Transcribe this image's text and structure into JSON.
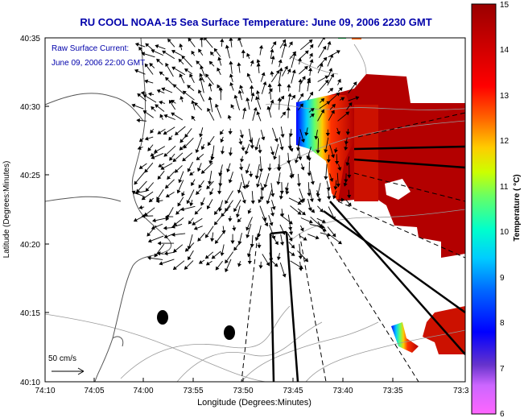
{
  "title": "RU COOL  NOAA-15  Sea Surface Temperature:  June 09, 2006 2230 GMT",
  "overlay": {
    "line1": "Raw Surface Current:",
    "line2": "June 09, 2006 22:00 GMT"
  },
  "scale_label": "50 cm/s",
  "xlabel": "Longitude (Degrees:Minutes)",
  "ylabel": "Latitude (Degrees:Minutes)",
  "x_ticks": [
    "74:10",
    "74:05",
    "74:00",
    "73:55",
    "73:50",
    "73:45",
    "73:40",
    "73:35",
    "73:3"
  ],
  "y_ticks": [
    "40:35",
    "40:30",
    "40:25",
    "40:20",
    "40:15",
    "40:10"
  ],
  "colorbar": {
    "label": "Temperature ( °C)",
    "ticks": [
      "15",
      "14",
      "13",
      "12",
      "11",
      "10",
      "9",
      "8",
      "7",
      "6"
    ],
    "min": 6,
    "max": 15
  },
  "colors": {
    "title": "#0000aa",
    "overlay_text": "#0000aa",
    "land": "#ffffff",
    "sst_warm": "#b30000",
    "arrow": "#000000"
  }
}
